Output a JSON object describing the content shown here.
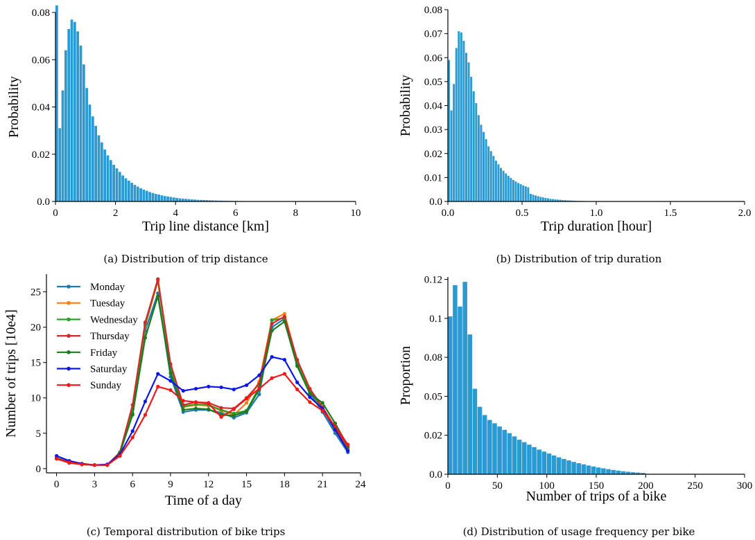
{
  "chart_data": [
    {
      "id": "a",
      "type": "bar",
      "caption": "(a) Distribution of trip distance",
      "xlabel": "Trip line distance [km]",
      "ylabel": "Probability",
      "xlim": [
        0,
        10
      ],
      "ylim": [
        0,
        0.08
      ],
      "xticks": [
        0,
        2,
        4,
        6,
        8,
        10
      ],
      "xtick_labels": [
        "0",
        "2",
        "4",
        "6",
        "8",
        "10"
      ],
      "yticks": [
        0,
        0.02,
        0.04,
        0.06,
        0.08
      ],
      "ytick_labels": [
        "0.0",
        "0.02",
        "0.04",
        "0.06",
        "0.08"
      ],
      "color": "#2a9ad2",
      "bin_width": 0.1,
      "x_start": 0,
      "values": [
        0.083,
        0.031,
        0.047,
        0.064,
        0.073,
        0.077,
        0.076,
        0.072,
        0.066,
        0.058,
        0.048,
        0.041,
        0.036,
        0.032,
        0.028,
        0.025,
        0.022,
        0.0195,
        0.0175,
        0.0155,
        0.014,
        0.0125,
        0.011,
        0.0098,
        0.0088,
        0.0079,
        0.007,
        0.0063,
        0.0056,
        0.005,
        0.0045,
        0.004,
        0.0036,
        0.0032,
        0.0029,
        0.0026,
        0.0023,
        0.0021,
        0.0019,
        0.0017,
        0.0015,
        0.0013,
        0.0012,
        0.0011,
        0.001,
        0.0009,
        0.0008,
        0.0007,
        0.00065,
        0.0006,
        0.00055,
        0.0005,
        0.00045,
        0.0004,
        0.00037,
        0.00034,
        0.00031,
        0.00028,
        0.00025,
        0.00022,
        0.0002,
        0.00018,
        0.00016,
        0.00014,
        0.00012,
        0.0001,
        9e-05,
        8e-05,
        7e-05,
        6e-05
      ]
    },
    {
      "id": "b",
      "type": "bar",
      "caption": "(b) Distribution of trip duration",
      "xlabel": "Trip duration [hour]",
      "ylabel": "Probability",
      "xlim": [
        0,
        2.0
      ],
      "ylim": [
        0,
        0.08
      ],
      "xticks": [
        0,
        0.5,
        1.0,
        1.5,
        2.0
      ],
      "xtick_labels": [
        "0.0",
        "0.5",
        "1.0",
        "1.5",
        "2.0"
      ],
      "yticks": [
        0,
        0.01,
        0.02,
        0.03,
        0.04,
        0.05,
        0.06,
        0.07,
        0.08
      ],
      "ytick_labels": [
        "0.0",
        "0.01",
        "0.02",
        "0.03",
        "0.04",
        "0.05",
        "0.06",
        "0.07",
        "0.08"
      ],
      "color": "#2a9ad2",
      "bin_width": 0.0167,
      "x_start": 0,
      "values": [
        0.059,
        0.038,
        0.049,
        0.064,
        0.071,
        0.0705,
        0.067,
        0.062,
        0.058,
        0.052,
        0.046,
        0.041,
        0.036,
        0.032,
        0.029,
        0.026,
        0.023,
        0.021,
        0.019,
        0.017,
        0.0155,
        0.014,
        0.0128,
        0.0117,
        0.0107,
        0.0098,
        0.009,
        0.0083,
        0.0077,
        0.0072,
        0.0067,
        0.0063,
        0.0059,
        0.0032,
        0.0028,
        0.0025,
        0.0022,
        0.0019,
        0.0017,
        0.0015,
        0.0013,
        0.0011,
        0.001,
        0.0009,
        0.0008,
        0.0007,
        0.0006,
        0.0005,
        0.00045,
        0.0004,
        0.00035,
        0.0003,
        0.00026,
        0.00022,
        0.00019,
        0.00016,
        0.00013,
        0.0001,
        8e-05,
        6e-05
      ]
    },
    {
      "id": "c",
      "type": "line",
      "caption": "(c) Temporal distribution of bike trips",
      "xlabel": "Time of a day",
      "ylabel": "Number of trips [10e4]",
      "xlim": [
        -0.8,
        24
      ],
      "ylim": [
        -0.6,
        27.5
      ],
      "xticks": [
        0,
        3,
        6,
        9,
        12,
        15,
        18,
        21,
        24
      ],
      "xtick_labels": [
        "0",
        "3",
        "6",
        "9",
        "12",
        "15",
        "18",
        "21",
        "24"
      ],
      "yticks": [
        0,
        5,
        10,
        15,
        20,
        25
      ],
      "ytick_labels": [
        "0",
        "5",
        "10",
        "15",
        "20",
        "25"
      ],
      "legend_position": "top-left",
      "x": [
        0,
        1,
        2,
        3,
        4,
        5,
        6,
        7,
        8,
        9,
        10,
        11,
        12,
        13,
        14,
        15,
        16,
        17,
        18,
        19,
        20,
        21,
        22,
        23
      ],
      "series": [
        {
          "name": "Monday",
          "color": "#1f77b4",
          "values": [
            1.5,
            0.9,
            0.6,
            0.5,
            0.5,
            2.2,
            7.8,
            19.5,
            24.8,
            13.0,
            8.0,
            8.3,
            8.3,
            7.9,
            7.2,
            7.9,
            10.5,
            20.0,
            21.2,
            14.8,
            10.7,
            8.0,
            5.0,
            2.3
          ]
        },
        {
          "name": "Tuesday",
          "color": "#ff7f0e",
          "values": [
            1.4,
            0.9,
            0.6,
            0.5,
            0.5,
            2.3,
            8.5,
            20.2,
            26.5,
            14.5,
            8.7,
            9.0,
            8.9,
            8.2,
            7.6,
            9.3,
            12.3,
            21.0,
            21.9,
            15.2,
            11.0,
            8.4,
            5.5,
            2.8
          ]
        },
        {
          "name": "Wednesday",
          "color": "#2ca02c",
          "values": [
            1.4,
            0.8,
            0.6,
            0.5,
            0.5,
            2.3,
            8.4,
            20.4,
            26.7,
            14.2,
            8.8,
            9.1,
            9.0,
            8.3,
            7.8,
            8.2,
            11.5,
            21.0,
            21.3,
            15.0,
            11.0,
            8.5,
            5.4,
            2.8
          ]
        },
        {
          "name": "Thursday",
          "color": "#d62728",
          "values": [
            1.4,
            0.8,
            0.6,
            0.5,
            0.5,
            2.3,
            9.0,
            20.7,
            26.8,
            14.8,
            9.0,
            9.4,
            9.3,
            8.6,
            8.5,
            10.0,
            12.0,
            20.5,
            21.5,
            15.4,
            11.3,
            8.7,
            5.8,
            3.0
          ]
        },
        {
          "name": "Friday",
          "color": "#1a7c1a",
          "values": [
            1.5,
            0.9,
            0.6,
            0.5,
            0.5,
            2.2,
            7.6,
            18.5,
            24.4,
            13.5,
            8.3,
            8.5,
            8.4,
            7.6,
            7.5,
            8.1,
            11.2,
            19.5,
            20.8,
            14.5,
            10.6,
            9.3,
            6.4,
            3.2
          ]
        },
        {
          "name": "Saturday",
          "color": "#0a17e8",
          "values": [
            1.8,
            1.1,
            0.7,
            0.5,
            0.6,
            2.0,
            5.3,
            9.5,
            13.4,
            12.4,
            11.0,
            11.3,
            11.6,
            11.5,
            11.2,
            11.8,
            13.2,
            15.8,
            15.4,
            12.2,
            10.1,
            8.5,
            5.5,
            2.5
          ]
        },
        {
          "name": "Sunday",
          "color": "#f01818",
          "values": [
            1.4,
            0.9,
            0.6,
            0.5,
            0.5,
            1.8,
            4.4,
            7.6,
            11.6,
            11.1,
            9.6,
            9.4,
            9.2,
            7.3,
            8.4,
            9.9,
            11.3,
            12.8,
            13.4,
            11.2,
            9.4,
            8.2,
            6.0,
            3.4
          ]
        }
      ]
    },
    {
      "id": "d",
      "type": "bar",
      "caption": "(d) Distribution of usage frequency per bike",
      "xlabel": "Number of trips of a bike",
      "ylabel": "Proportion",
      "xlim": [
        0,
        300
      ],
      "ylim": [
        0,
        0.12
      ],
      "xticks": [
        0,
        50,
        100,
        150,
        200,
        250,
        300
      ],
      "xtick_labels": [
        "0",
        "50",
        "100",
        "150",
        "200",
        "250",
        "300"
      ],
      "yticks": [
        0,
        0.02,
        0.05,
        0.08,
        0.1,
        0.12
      ],
      "ytick_labels": [
        "0.0",
        "0.02",
        "0.05",
        "0.08",
        "0.1",
        "0.12"
      ],
      "ytick_positions": [
        0,
        0.0237,
        0.0474,
        0.0711,
        0.0948,
        0.1185
      ],
      "color": "#2a9ad2",
      "bin_width": 5,
      "x_start": 0,
      "values": [
        0.096,
        0.115,
        0.102,
        0.117,
        0.085,
        0.052,
        0.041,
        0.036,
        0.033,
        0.031,
        0.029,
        0.027,
        0.025,
        0.023,
        0.021,
        0.0195,
        0.018,
        0.0165,
        0.015,
        0.0138,
        0.0126,
        0.0114,
        0.0103,
        0.0093,
        0.0084,
        0.0075,
        0.0067,
        0.006,
        0.0053,
        0.0047,
        0.0041,
        0.0036,
        0.0031,
        0.0026,
        0.0022,
        0.0018,
        0.0015,
        0.0012,
        0.001,
        0.0008
      ]
    }
  ]
}
